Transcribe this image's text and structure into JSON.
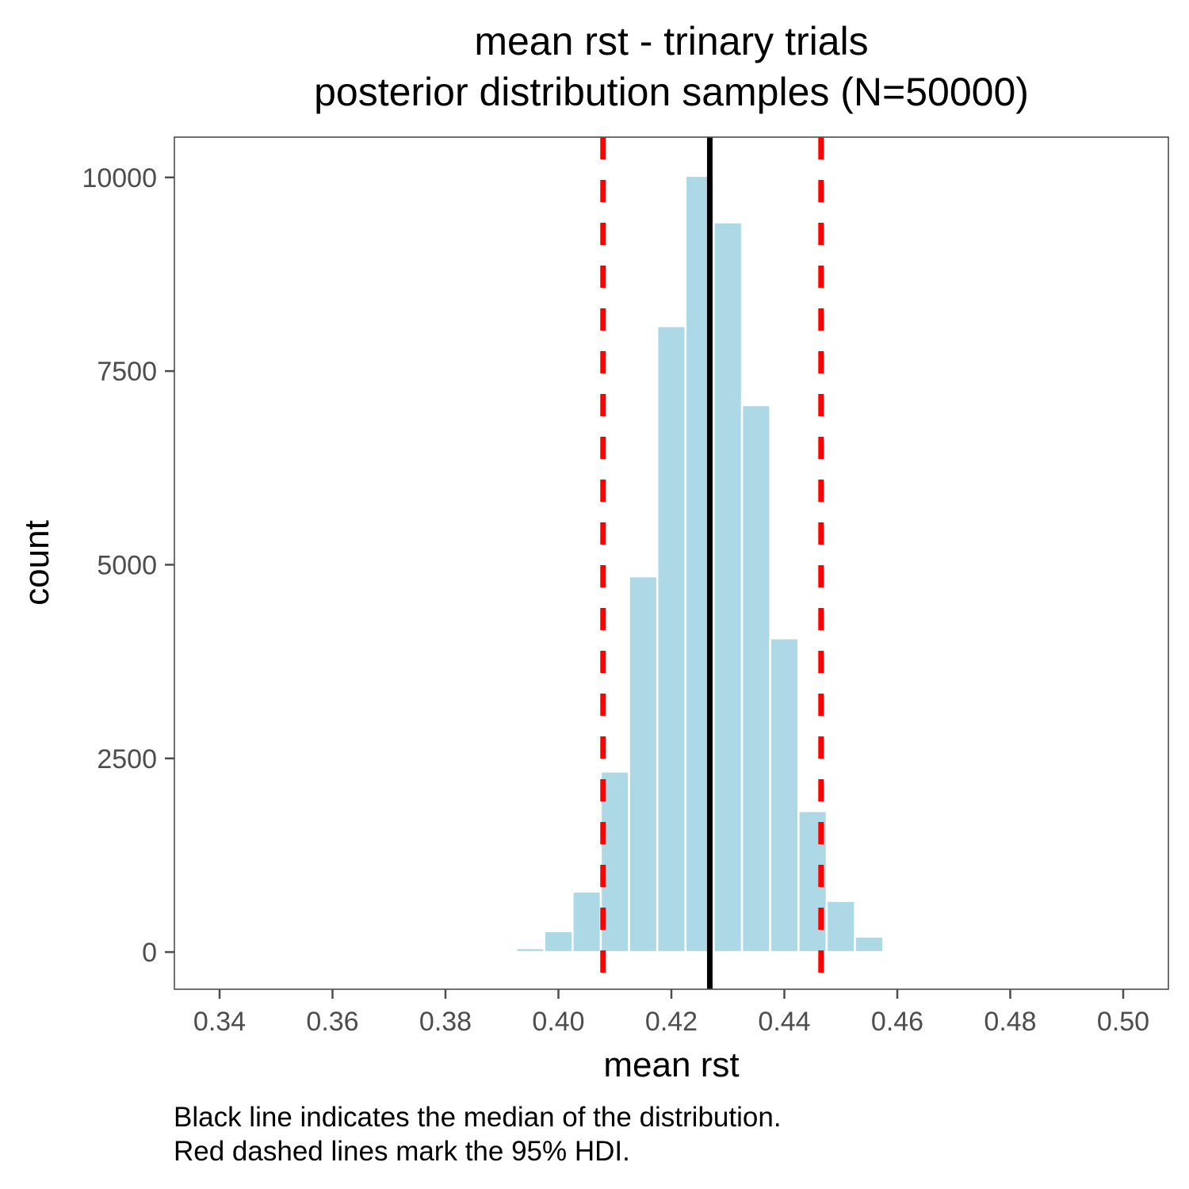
{
  "chart_data": {
    "type": "bar",
    "title": "mean rst - trinary trials",
    "subtitle": "posterior distribution samples (N=50000)",
    "xlabel": "mean rst",
    "ylabel": "count",
    "x_ticks": [
      "0.34",
      "0.36",
      "0.38",
      "0.40",
      "0.42",
      "0.44",
      "0.46",
      "0.48",
      "0.50"
    ],
    "x_tick_values": [
      0.34,
      0.36,
      0.38,
      0.4,
      0.42,
      0.44,
      0.46,
      0.48,
      0.5
    ],
    "y_ticks": [
      "0",
      "2500",
      "5000",
      "7500",
      "10000"
    ],
    "y_tick_values": [
      0,
      2500,
      5000,
      7500,
      10000
    ],
    "xlim": [
      0.332,
      0.508
    ],
    "ylim": [
      -480,
      10520
    ],
    "bin_width": 0.005,
    "bins": [
      {
        "x": 0.395,
        "count": 50
      },
      {
        "x": 0.4,
        "count": 270
      },
      {
        "x": 0.405,
        "count": 780
      },
      {
        "x": 0.41,
        "count": 2330
      },
      {
        "x": 0.415,
        "count": 4850
      },
      {
        "x": 0.42,
        "count": 8080
      },
      {
        "x": 0.425,
        "count": 10020
      },
      {
        "x": 0.43,
        "count": 9420
      },
      {
        "x": 0.435,
        "count": 7060
      },
      {
        "x": 0.44,
        "count": 4050
      },
      {
        "x": 0.445,
        "count": 1820
      },
      {
        "x": 0.45,
        "count": 660
      },
      {
        "x": 0.455,
        "count": 200
      }
    ],
    "median": 0.4268,
    "hdi_95": [
      0.4079,
      0.4465
    ],
    "grid": false,
    "legend": "none",
    "colors": {
      "bar_fill": "#add8e6",
      "bar_outline": "#ffffff",
      "median_line": "#000000",
      "hdi_line": "#ff0000",
      "axis": "#4d4d4d"
    }
  },
  "caption": {
    "line1": "Black line indicates the median of the distribution.",
    "line2": "Red dashed lines mark the 95% HDI."
  }
}
